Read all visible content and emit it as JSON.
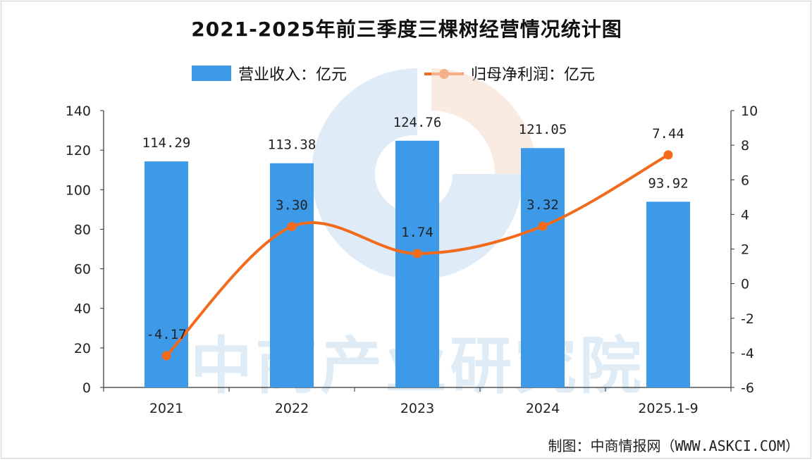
{
  "title": "2021-2025年前三季度三棵树经营情况统计图",
  "source": "制图：中商情报网（WWW.ASKCI.COM）",
  "watermark": "中商产业研究院",
  "colors": {
    "bar": "#3d9ae8",
    "line": "#f26b1d",
    "axis": "#333333",
    "watermark_blue": "#b9d3ea",
    "watermark_orange": "#f6ddcf"
  },
  "chart_data": {
    "type": "bar",
    "categories": [
      "2021",
      "2022",
      "2023",
      "2024",
      "2025.1-9"
    ],
    "series": [
      {
        "name": "营业收入：亿元",
        "kind": "bar",
        "axis": "left",
        "values": [
          114.29,
          113.38,
          124.76,
          121.05,
          93.92
        ],
        "labels": [
          "114.29",
          "113.38",
          "124.76",
          "121.05",
          "93.92"
        ]
      },
      {
        "name": "归母净利润：亿元",
        "kind": "line",
        "axis": "right",
        "values": [
          -4.17,
          3.3,
          1.74,
          3.32,
          7.44
        ],
        "labels": [
          "-4.17",
          "3.30",
          "1.74",
          "3.32",
          "7.44"
        ]
      }
    ],
    "y_left": {
      "min": 0,
      "max": 140,
      "ticks": [
        "0",
        "20",
        "40",
        "60",
        "80",
        "100",
        "120",
        "140"
      ]
    },
    "y_right": {
      "min": -6,
      "max": 10,
      "ticks": [
        "-6",
        "-4",
        "-2",
        "0",
        "2",
        "4",
        "6",
        "8",
        "10"
      ]
    },
    "legend_position": "top-center",
    "grid": false
  }
}
